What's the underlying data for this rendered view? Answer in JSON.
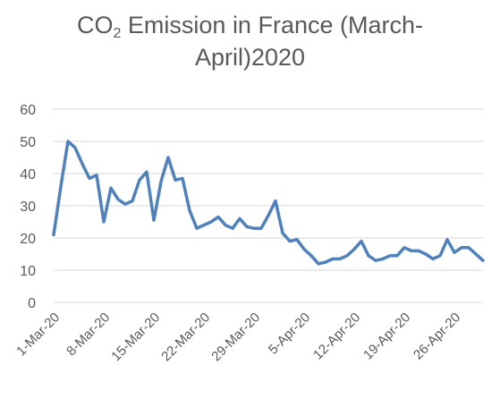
{
  "chart_data": {
    "type": "line",
    "title_line1_pre": "CO",
    "title_sub": "2",
    "title_line1_post": " Emission in France (March-",
    "title_line2": "April)2020",
    "xlabel": "",
    "ylabel": "",
    "ylim": [
      0,
      60
    ],
    "yticks": [
      "0",
      "10",
      "20",
      "30",
      "40",
      "50",
      "60"
    ],
    "xtick_labels": [
      "1-Mar-20",
      "8-Mar-20",
      "15-Mar-20",
      "22-Mar-20",
      "29-Mar-20",
      "5-Apr-20",
      "12-Apr-20",
      "19-Apr-20",
      "26-Apr-20"
    ],
    "grid": true,
    "legend": "none",
    "line_color": "#4f81bd",
    "x": [
      "1-Mar-20",
      "2-Mar-20",
      "3-Mar-20",
      "4-Mar-20",
      "5-Mar-20",
      "6-Mar-20",
      "7-Mar-20",
      "8-Mar-20",
      "9-Mar-20",
      "10-Mar-20",
      "11-Mar-20",
      "12-Mar-20",
      "13-Mar-20",
      "14-Mar-20",
      "15-Mar-20",
      "16-Mar-20",
      "17-Mar-20",
      "18-Mar-20",
      "19-Mar-20",
      "20-Mar-20",
      "21-Mar-20",
      "22-Mar-20",
      "23-Mar-20",
      "24-Mar-20",
      "25-Mar-20",
      "26-Mar-20",
      "27-Mar-20",
      "28-Mar-20",
      "29-Mar-20",
      "30-Mar-20",
      "31-Mar-20",
      "1-Apr-20",
      "2-Apr-20",
      "3-Apr-20",
      "4-Apr-20",
      "5-Apr-20",
      "6-Apr-20",
      "7-Apr-20",
      "8-Apr-20",
      "9-Apr-20",
      "10-Apr-20",
      "11-Apr-20",
      "12-Apr-20",
      "13-Apr-20",
      "14-Apr-20",
      "15-Apr-20",
      "16-Apr-20",
      "17-Apr-20",
      "18-Apr-20",
      "19-Apr-20",
      "20-Apr-20",
      "21-Apr-20",
      "22-Apr-20",
      "23-Apr-20",
      "24-Apr-20",
      "25-Apr-20",
      "26-Apr-20",
      "27-Apr-20",
      "28-Apr-20",
      "29-Apr-20",
      "30-Apr-20"
    ],
    "series": [
      {
        "values": [
          21,
          36,
          50,
          48,
          43,
          38.5,
          39.5,
          25,
          35.5,
          32,
          30.5,
          31.5,
          38,
          40.5,
          25.5,
          37.5,
          45,
          38,
          38.5,
          28.5,
          23,
          24,
          25,
          26.5,
          24,
          23,
          26,
          23.5,
          23,
          23,
          27,
          31.5,
          21.5,
          19,
          19.5,
          16.5,
          14.5,
          12,
          12.5,
          13.5,
          13.5,
          14.5,
          16.5,
          19,
          14.5,
          13,
          13.5,
          14.5,
          14.5,
          17,
          16,
          16,
          15,
          13.5,
          14.5,
          19.5,
          15.5,
          17,
          17,
          15,
          13
        ]
      }
    ]
  }
}
